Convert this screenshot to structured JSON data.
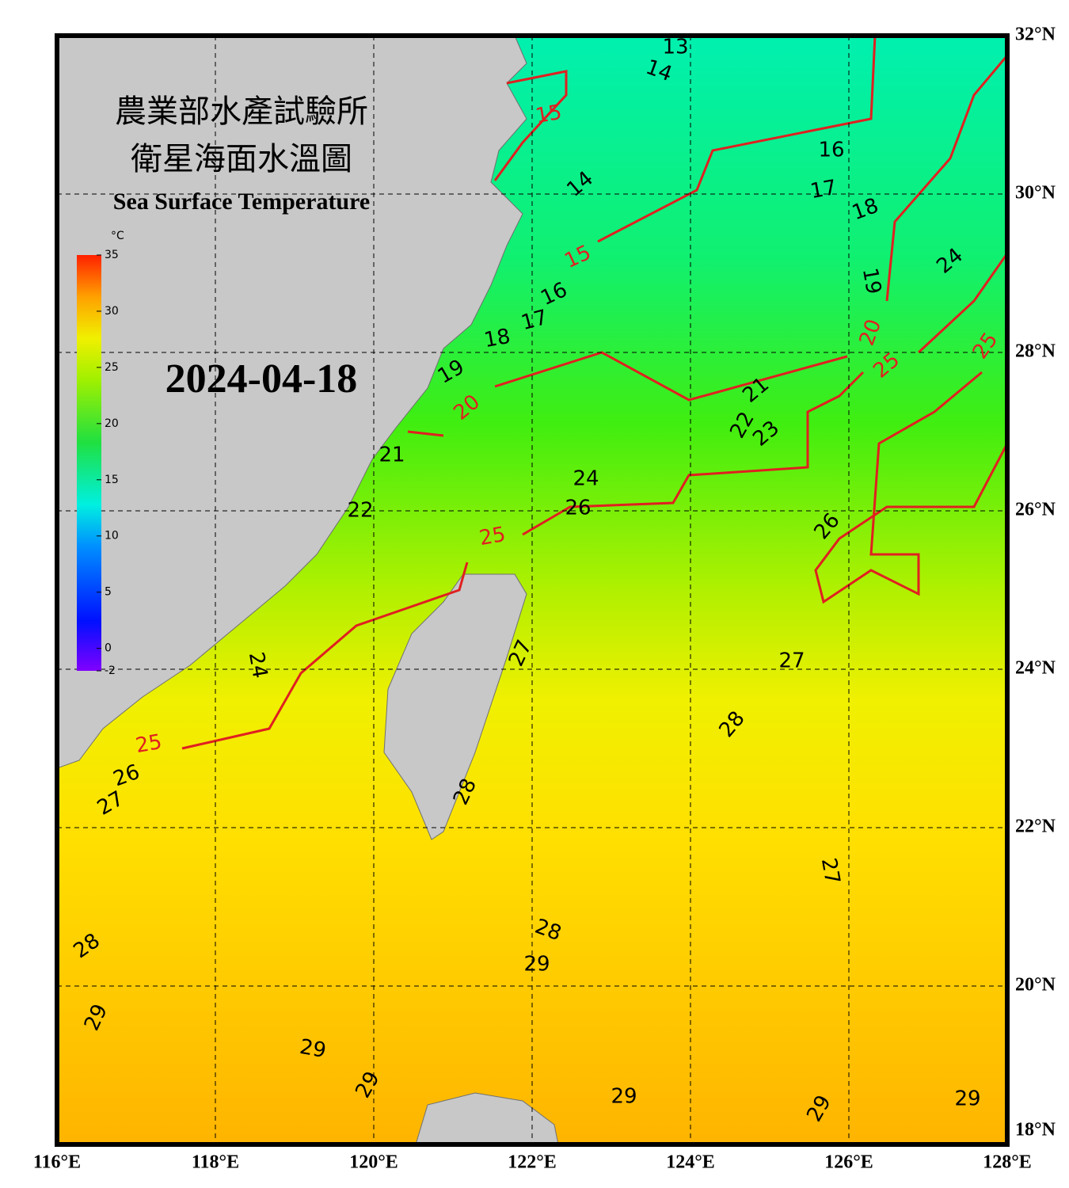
{
  "map": {
    "title_zh_1": "農業部水產試驗所",
    "title_zh_2": "衛星海面水溫圖",
    "title_en": "Sea Surface Temperature",
    "date": "2024-04-18",
    "xlim": [
      116,
      128
    ],
    "ylim": [
      18,
      32
    ],
    "xticks": [
      {
        "value": 116,
        "label": "116°E"
      },
      {
        "value": 118,
        "label": "118°E"
      },
      {
        "value": 120,
        "label": "120°E"
      },
      {
        "value": 122,
        "label": "122°E"
      },
      {
        "value": 124,
        "label": "124°E"
      },
      {
        "value": 126,
        "label": "126°E"
      },
      {
        "value": 128,
        "label": "128°E"
      }
    ],
    "yticks": [
      {
        "value": 32,
        "label": "32°N"
      },
      {
        "value": 30,
        "label": "30°N"
      },
      {
        "value": 28,
        "label": "28°N"
      },
      {
        "value": 26,
        "label": "26°N"
      },
      {
        "value": 24,
        "label": "24°N"
      },
      {
        "value": 22,
        "label": "22°N"
      },
      {
        "value": 20,
        "label": "20°N"
      },
      {
        "value": 18,
        "label": "18°N"
      }
    ],
    "colorbar": {
      "unit": "°C",
      "lim": [
        -2,
        35
      ],
      "ticks": [
        35,
        30,
        25,
        20,
        15,
        10,
        5,
        0,
        -2
      ]
    },
    "isotherm_labels": [
      13,
      14,
      15,
      16,
      17,
      18,
      14,
      15,
      19,
      24,
      16,
      17,
      18,
      20,
      25,
      19,
      25,
      20,
      21,
      22,
      23,
      21,
      24,
      26,
      22,
      26,
      25,
      27,
      27,
      24,
      28,
      25,
      26,
      27,
      28,
      27,
      28,
      29,
      28,
      29,
      29,
      29,
      29,
      29,
      29
    ]
  }
}
